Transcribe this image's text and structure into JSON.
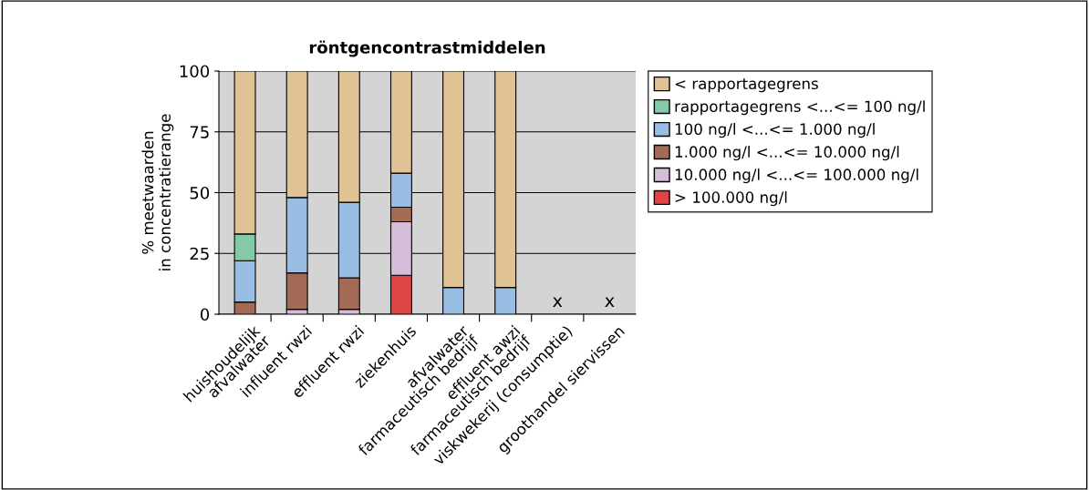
{
  "chart_data": {
    "type": "bar",
    "title": "röntgencontrastmiddelen",
    "ylabel": "% meetwaarden\nin concentratierange",
    "categories": [
      "huishoudelijk\nafvalwater",
      "influent rwzi",
      "effluent rwzi",
      "ziekenhuis",
      "afvalwater\nfarmaceutisch bedrijf",
      "effluent awzi\nfarmaceutisch bedrijf",
      "viskwekerij (consumptie)",
      "groothandel siervissen"
    ],
    "stacked": true,
    "ylim": [
      0,
      100
    ],
    "yticks": [
      0,
      25,
      50,
      75,
      100
    ],
    "grid": "y",
    "legend": "top right",
    "series": [
      {
        "name": "> 100.000 ng/l",
        "color": "#e04545",
        "values": [
          0,
          0,
          0,
          16,
          0,
          0,
          null,
          null
        ]
      },
      {
        "name": "10.000 ng/l <...<= 100.000 ng/l",
        "color": "#d5bcd8",
        "values": [
          0,
          2,
          2,
          22,
          0,
          0,
          null,
          null
        ]
      },
      {
        "name": "1.000 ng/l <...<= 10.000 ng/l",
        "color": "#a36a55",
        "values": [
          5,
          15,
          13,
          6,
          0,
          0,
          null,
          null
        ]
      },
      {
        "name": "100 ng/l <...<= 1.000 ng/l",
        "color": "#99bde3",
        "values": [
          17,
          31,
          31,
          14,
          11,
          11,
          null,
          null
        ]
      },
      {
        "name": "rapportagegrens <...<= 100 ng/l",
        "color": "#86c9a8",
        "values": [
          11,
          0,
          0,
          0,
          0,
          0,
          null,
          null
        ]
      },
      {
        "name": "< rapportagegrens",
        "color": "#e0c394",
        "values": [
          67,
          52,
          54,
          42,
          89,
          89,
          null,
          null
        ]
      }
    ],
    "annotations": [
      "x",
      "x"
    ]
  }
}
